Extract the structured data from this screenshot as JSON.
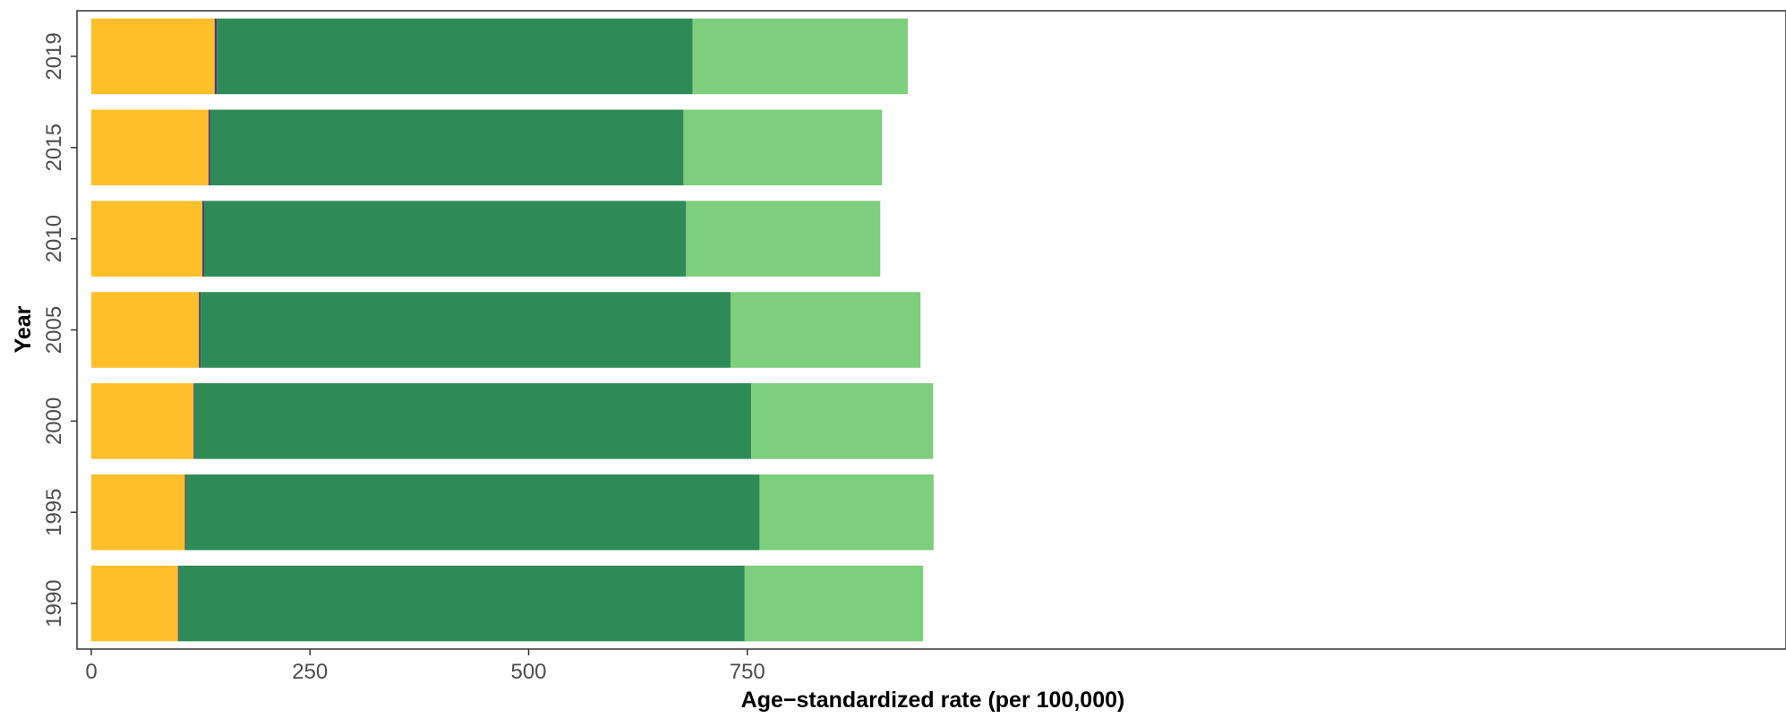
{
  "chart_data": {
    "type": "bar",
    "orientation": "horizontal",
    "stacked": true,
    "xlabel": "Age−standardized rate (per 100,000)",
    "ylabel": "Year",
    "xlim": [
      0,
      960
    ],
    "x_ticks": [
      0,
      250,
      500,
      750
    ],
    "categories": [
      "1990",
      "1995",
      "2000",
      "2005",
      "2010",
      "2015",
      "2019"
    ],
    "series": [
      {
        "color": "#FEBF2A",
        "values": [
          99,
          107,
          117,
          123,
          127,
          134,
          141
        ]
      },
      {
        "color": "#4B3B7A",
        "values": [
          1,
          1,
          1.5,
          2,
          2,
          2,
          2.5
        ]
      },
      {
        "color": "#2E8B57",
        "values": [
          647,
          656,
          636,
          606,
          551,
          541,
          544
        ]
      },
      {
        "color": "#7DCE7D",
        "values": [
          204,
          199,
          208,
          217,
          222,
          227,
          246
        ]
      }
    ],
    "grid": false,
    "legend": "none"
  }
}
